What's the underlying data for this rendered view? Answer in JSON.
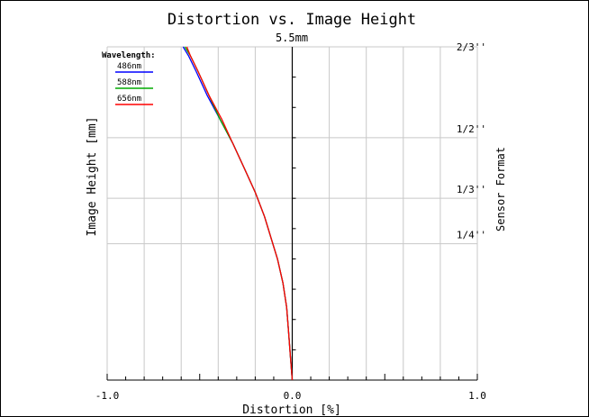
{
  "chart_data": {
    "type": "line",
    "title": "Distortion vs. Image Height",
    "xlabel": "Distortion [%]",
    "ylabel": "Image Height [mm]",
    "y2label": "Sensor Format",
    "xlim": [
      -1.0,
      1.0
    ],
    "ylim": [
      0,
      5.5
    ],
    "x_tick_labels": [
      "-1.0",
      "0.0",
      "1.0"
    ],
    "top_value_label": "5.5mm",
    "grid": true,
    "legend": {
      "title": "Wavelength:",
      "placement": "top-left"
    },
    "sensor_formats": [
      {
        "label": "2/3''",
        "height": 5.5
      },
      {
        "label": "1/2''",
        "height": 4.0
      },
      {
        "label": "1/3''",
        "height": 3.0
      },
      {
        "label": "1/4''",
        "height": 2.25
      }
    ],
    "series": [
      {
        "name": "486nm",
        "color": "#0000ff",
        "x": [
          0.0,
          -0.01,
          -0.02,
          -0.03,
          -0.05,
          -0.08,
          -0.11,
          -0.15,
          -0.2,
          -0.26,
          -0.32,
          -0.39,
          -0.46,
          -0.52,
          -0.56,
          -0.59
        ],
        "y": [
          0.0,
          0.4,
          0.8,
          1.2,
          1.6,
          2.0,
          2.3,
          2.7,
          3.1,
          3.5,
          3.9,
          4.3,
          4.7,
          5.1,
          5.35,
          5.5
        ]
      },
      {
        "name": "588nm",
        "color": "#00aa00",
        "x": [
          0.0,
          -0.01,
          -0.02,
          -0.03,
          -0.05,
          -0.08,
          -0.11,
          -0.15,
          -0.2,
          -0.26,
          -0.32,
          -0.39,
          -0.45,
          -0.51,
          -0.55,
          -0.58
        ],
        "y": [
          0.0,
          0.4,
          0.8,
          1.2,
          1.6,
          2.0,
          2.3,
          2.7,
          3.1,
          3.5,
          3.9,
          4.3,
          4.7,
          5.1,
          5.35,
          5.5
        ]
      },
      {
        "name": "656nm",
        "color": "#ff0000",
        "x": [
          0.0,
          -0.01,
          -0.02,
          -0.03,
          -0.05,
          -0.08,
          -0.11,
          -0.15,
          -0.2,
          -0.26,
          -0.32,
          -0.38,
          -0.45,
          -0.51,
          -0.55,
          -0.57
        ],
        "y": [
          0.0,
          0.4,
          0.8,
          1.2,
          1.6,
          2.0,
          2.3,
          2.7,
          3.1,
          3.5,
          3.9,
          4.3,
          4.7,
          5.1,
          5.35,
          5.5
        ]
      }
    ]
  }
}
